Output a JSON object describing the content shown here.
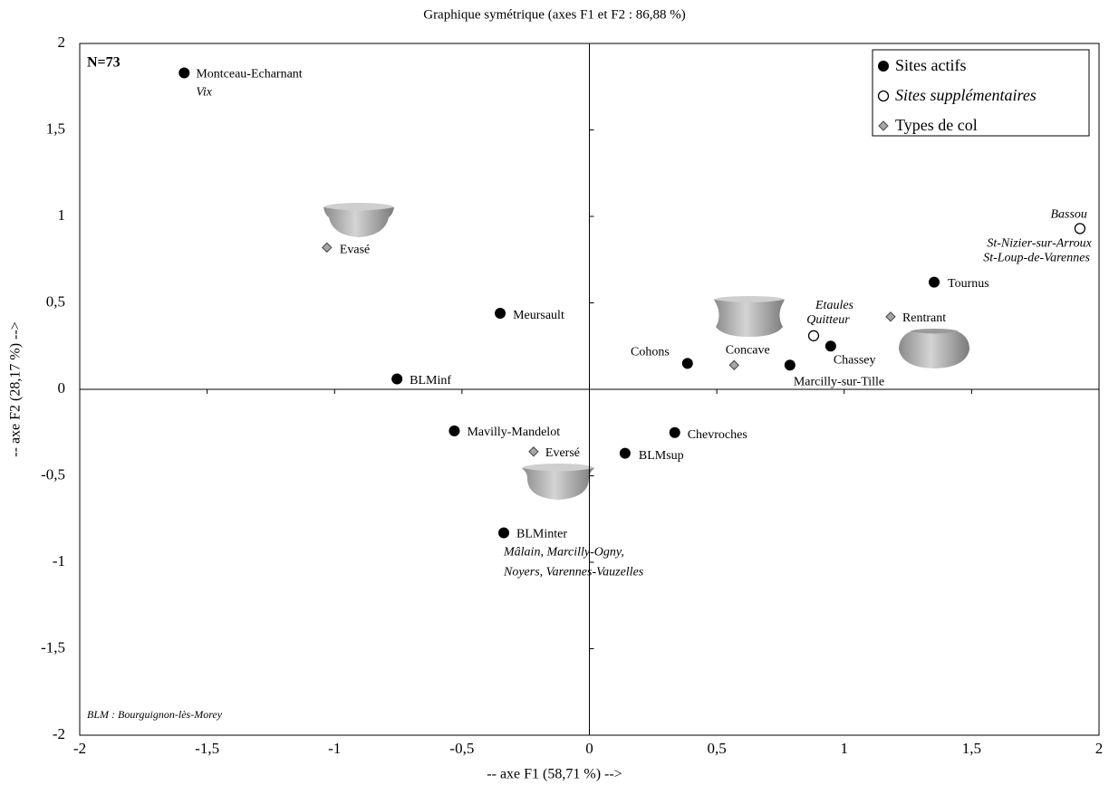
{
  "chart_data": {
    "type": "scatter",
    "title": "Graphique symétrique (axes F1 et F2 : 86,88 %)",
    "x_label": "-- axe F1 (58,71 %) -->",
    "y_label": "-- axe F2 (28,17 %) -->",
    "annotations": [
      "N=73",
      "BLM : Bourguignon-lès-Morey"
    ],
    "xlim": [
      -2,
      2
    ],
    "ylim": [
      -2,
      2
    ],
    "xticks": [
      -2,
      {
        "value": -1.5,
        "label": "-1,5"
      },
      -1,
      {
        "value": -0.5,
        "label": "-0,5"
      },
      0,
      {
        "value": 0.5,
        "label": "0,5"
      },
      1,
      {
        "value": 1.5,
        "label": "1,5"
      },
      2
    ],
    "yticks": [
      -2,
      {
        "value": -1.5,
        "label": "-1,5"
      },
      -1,
      {
        "value": -0.5,
        "label": "-0,5"
      },
      0,
      {
        "value": 0.5,
        "label": "0,5"
      },
      1,
      {
        "value": 1.5,
        "label": "1,5"
      },
      2
    ],
    "legend": "upper right",
    "series": [
      {
        "name": "Sites actifs",
        "marker": "filled",
        "color": "#000000",
        "x": [
          -1.59,
          -0.35,
          -0.755,
          -0.53,
          -0.336,
          0.14,
          0.335,
          0.385,
          0.787,
          0.947,
          1.353
        ],
        "values": [
          1.83,
          0.44,
          0.06,
          -0.24,
          -0.83,
          -0.37,
          -0.25,
          0.15,
          0.14,
          0.25,
          0.62
        ],
        "labels": [
          [
            "Montceau-Echarnant",
            "Vix"
          ],
          [
            "Meursault"
          ],
          [
            "BLMinf"
          ],
          [
            "Mavilly-Mandelot"
          ],
          [
            "BLMinter",
            "Mâlain, Marcilly-Ogny,",
            "Noyers, Varennes-Vauzelles"
          ],
          [
            "BLMsup"
          ],
          [
            "Chevroches"
          ],
          [
            "Cohons"
          ],
          [
            "Marcilly-sur-Tille"
          ],
          [
            "Chassey"
          ],
          [
            "Tournus"
          ]
        ]
      },
      {
        "name": "Sites supplémentaires",
        "marker": "open",
        "color": "#ffffff",
        "x": [
          1.925,
          0.88
        ],
        "values": [
          0.93,
          0.31
        ],
        "labels": [
          [
            "Bassou",
            "St-Nizier-sur-Arroux",
            "St-Loup-de-Varennes"
          ],
          [
            "Etaules",
            "Quitteur"
          ]
        ]
      },
      {
        "name": "Types de col",
        "marker": "diamond",
        "color": "#a6a6a6",
        "x": [
          -1.03,
          0.568,
          1.182,
          -0.219
        ],
        "values": [
          0.82,
          0.14,
          0.42,
          -0.36
        ],
        "labels": [
          [
            "Evasé"
          ],
          [
            "Concave"
          ],
          [
            "Rentrant"
          ],
          [
            "Eversé"
          ]
        ]
      }
    ]
  }
}
